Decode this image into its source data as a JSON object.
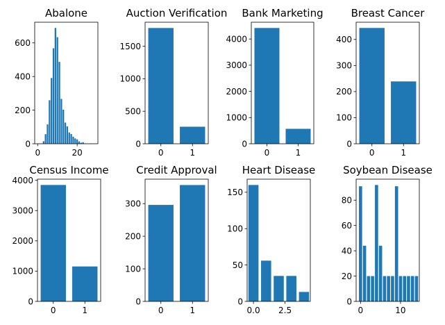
{
  "figure": {
    "bar_color": "#1f77b4",
    "axis_color": "#000000",
    "background": "#ffffff"
  },
  "chart_data": [
    {
      "type": "bar",
      "title": "Abalone",
      "x": [
        1,
        2,
        3,
        4,
        5,
        6,
        7,
        8,
        9,
        10,
        11,
        12,
        13,
        14,
        15,
        16,
        17,
        18,
        19,
        20,
        21,
        22,
        23,
        24,
        25,
        26,
        27,
        29
      ],
      "values": [
        1,
        1,
        15,
        57,
        115,
        259,
        391,
        568,
        689,
        634,
        487,
        267,
        203,
        126,
        103,
        67,
        58,
        42,
        32,
        26,
        14,
        6,
        9,
        2,
        1,
        1,
        2,
        1
      ],
      "xlim": [
        -1.5,
        30.5
      ],
      "ylim": [
        0,
        723
      ],
      "xticks": [
        0,
        20
      ],
      "xtick_labels": [
        "0",
        "20"
      ],
      "yticks": [
        0,
        200,
        400,
        600
      ],
      "ytick_labels": [
        "0",
        "200",
        "400",
        "600"
      ],
      "bar_width": 0.8
    },
    {
      "type": "bar",
      "title": "Auction Verification",
      "categories": [
        "0",
        "1"
      ],
      "x": [
        0,
        1
      ],
      "values": [
        1781,
        262
      ],
      "xlim": [
        -0.5,
        1.5
      ],
      "ylim": [
        0,
        1870
      ],
      "xticks": [
        0,
        1
      ],
      "xtick_labels": [
        "0",
        "1"
      ],
      "yticks": [
        0,
        500,
        1000,
        1500
      ],
      "ytick_labels": [
        "0",
        "500",
        "1000",
        "1500"
      ],
      "bar_width": 0.8
    },
    {
      "type": "bar",
      "title": "Bank Marketing",
      "categories": [
        "0",
        "1"
      ],
      "x": [
        0,
        1
      ],
      "values": [
        4420,
        570
      ],
      "xlim": [
        -0.5,
        1.5
      ],
      "ylim": [
        0,
        4640
      ],
      "xticks": [
        0,
        1
      ],
      "xtick_labels": [
        "0",
        "1"
      ],
      "yticks": [
        0,
        1000,
        2000,
        3000,
        4000
      ],
      "ytick_labels": [
        "0",
        "1000",
        "2000",
        "3000",
        "4000"
      ],
      "bar_width": 0.8
    },
    {
      "type": "bar",
      "title": "Breast Cancer",
      "categories": [
        "0",
        "1"
      ],
      "x": [
        0,
        1
      ],
      "values": [
        444,
        239
      ],
      "xlim": [
        -0.5,
        1.5
      ],
      "ylim": [
        0,
        466
      ],
      "xticks": [
        0,
        1
      ],
      "xtick_labels": [
        "0",
        "1"
      ],
      "yticks": [
        0,
        100,
        200,
        300,
        400
      ],
      "ytick_labels": [
        "0",
        "100",
        "200",
        "300",
        "400"
      ],
      "bar_width": 0.8
    },
    {
      "type": "bar",
      "title": "Census Income",
      "categories": [
        "0",
        "1"
      ],
      "x": [
        0,
        1
      ],
      "values": [
        3846,
        1154
      ],
      "xlim": [
        -0.5,
        1.5
      ],
      "ylim": [
        0,
        4038
      ],
      "xticks": [
        0,
        1
      ],
      "xtick_labels": [
        "0",
        "1"
      ],
      "yticks": [
        0,
        1000,
        2000,
        3000,
        4000
      ],
      "ytick_labels": [
        "0",
        "1000",
        "2000",
        "3000",
        "4000"
      ],
      "bar_width": 0.8
    },
    {
      "type": "bar",
      "title": "Credit Approval",
      "categories": [
        "0",
        "1"
      ],
      "x": [
        0,
        1
      ],
      "values": [
        296,
        357
      ],
      "xlim": [
        -0.5,
        1.5
      ],
      "ylim": [
        0,
        375
      ],
      "xticks": [
        0,
        1
      ],
      "xtick_labels": [
        "0",
        "1"
      ],
      "yticks": [
        0,
        100,
        200,
        300
      ],
      "ytick_labels": [
        "0",
        "100",
        "200",
        "300"
      ],
      "bar_width": 0.8
    },
    {
      "type": "bar",
      "title": "Heart Disease",
      "x": [
        0,
        1,
        2,
        3,
        4
      ],
      "values": [
        160,
        56,
        35,
        35,
        13
      ],
      "xlim": [
        -0.5,
        4.5
      ],
      "ylim": [
        0,
        168
      ],
      "xticks": [
        0,
        2.5
      ],
      "xtick_labels": [
        "0.0",
        "2.5"
      ],
      "yticks": [
        0,
        50,
        100,
        150
      ],
      "ytick_labels": [
        "0",
        "50",
        "100",
        "150"
      ],
      "bar_width": 0.8
    },
    {
      "type": "bar",
      "title": "Soybean Disease",
      "x": [
        0,
        1,
        2,
        3,
        4,
        5,
        6,
        7,
        8,
        9,
        10,
        11,
        12,
        13,
        14
      ],
      "values": [
        91,
        44,
        20,
        20,
        92,
        44,
        20,
        20,
        20,
        91,
        20,
        20,
        20,
        20,
        20
      ],
      "xlim": [
        -1.1,
        14.7
      ],
      "ylim": [
        0,
        96.6
      ],
      "xticks": [
        0,
        10
      ],
      "xtick_labels": [
        "0",
        "10"
      ],
      "yticks": [
        0,
        20,
        40,
        60,
        80
      ],
      "ytick_labels": [
        "0",
        "20",
        "40",
        "60",
        "80"
      ],
      "bar_width": 0.8
    }
  ]
}
